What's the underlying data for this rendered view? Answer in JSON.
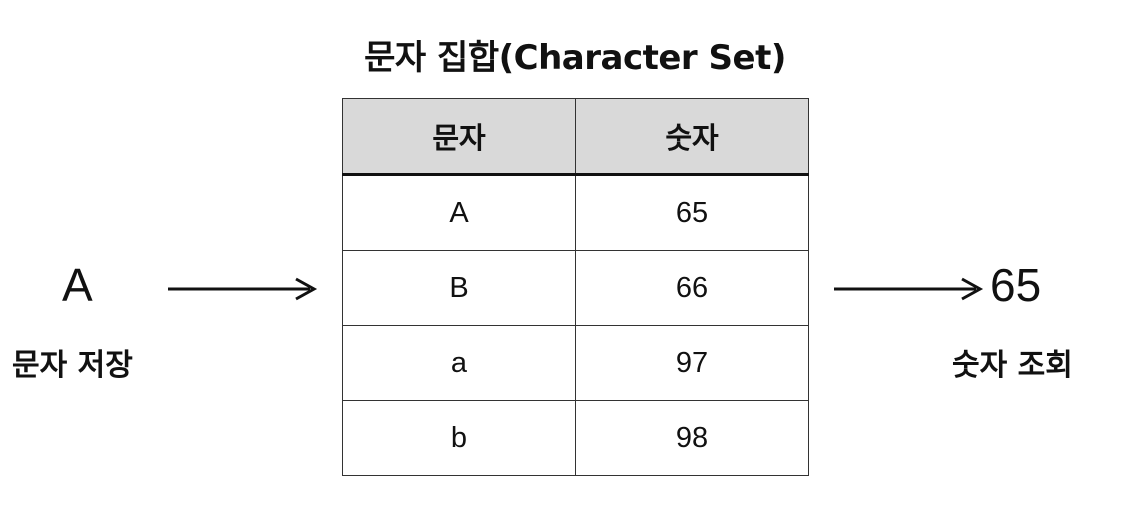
{
  "title": "문자 집합(Character Set)",
  "table": {
    "headers": [
      "문자",
      "숫자"
    ],
    "rows": [
      [
        "A",
        "65"
      ],
      [
        "B",
        "66"
      ],
      [
        "a",
        "97"
      ],
      [
        "b",
        "98"
      ]
    ]
  },
  "input": {
    "value": "A",
    "label": "문자 저장"
  },
  "output": {
    "value": "65",
    "label": "숫자 조회"
  }
}
